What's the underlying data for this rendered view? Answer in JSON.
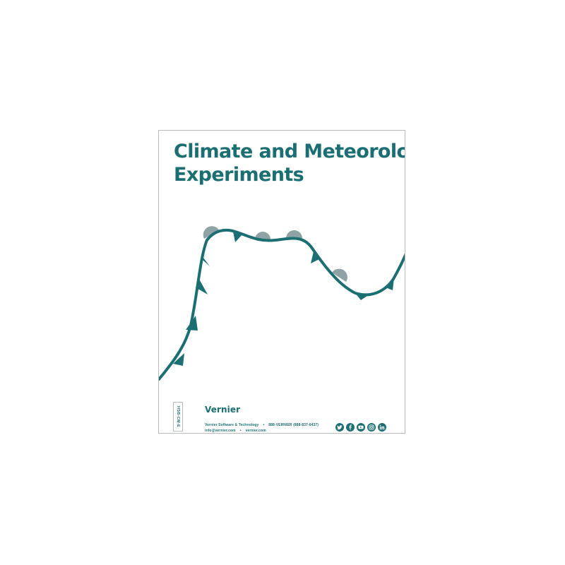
{
  "cover": {
    "title_line1": "Climate and Meteorology",
    "title_line2": "Experiments",
    "product_code": "HSB-CM-E",
    "brand": "Vernier",
    "company": "Vernier Software & Technology",
    "phone": "888-VERNIER (888-837-6437)",
    "email": "info@vernier.com",
    "website": "vernier.com",
    "separator": "•",
    "social_icons": [
      "twitter-icon",
      "facebook-icon",
      "youtube-icon",
      "instagram-icon",
      "linkedin-icon"
    ]
  },
  "colors": {
    "teal": "#1b6f72",
    "warm_front": "#8fa3a6",
    "border": "#b9bcbd"
  }
}
